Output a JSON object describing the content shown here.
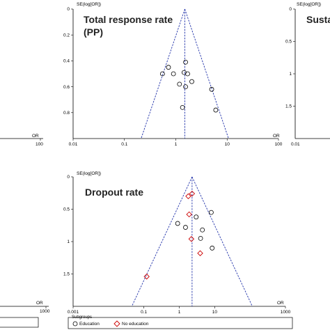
{
  "chart_data": [
    {
      "type": "scatter",
      "id": "left-top",
      "title": "",
      "xlabel": "OR",
      "ylabel": "",
      "x_scale": "log",
      "x_ticks": [
        "100"
      ],
      "y_ticks": [],
      "series": []
    },
    {
      "type": "scatter",
      "id": "center-top",
      "title_lines": [
        "Total response rate",
        "(PP)"
      ],
      "xlabel": "OR",
      "ylabel": "SE(log[OR])",
      "x_scale": "log",
      "xlim": [
        0.01,
        100
      ],
      "ylim": [
        0,
        1.0
      ],
      "y_reversed": true,
      "x_ticks": [
        "0.01",
        "0.1",
        "1",
        "10",
        "100"
      ],
      "x_tick_values": [
        0.01,
        0.1,
        1,
        10,
        100
      ],
      "y_ticks": [
        "0",
        "0.2",
        "0.4",
        "0.6",
        "0.8"
      ],
      "y_tick_values": [
        0,
        0.2,
        0.4,
        0.6,
        0.8
      ],
      "pooled_or": 1.5,
      "funnel_bottom_se": 1.0,
      "series": [
        {
          "marker": "circle",
          "points": [
            {
              "x": 1.55,
              "y": 0.41
            },
            {
              "x": 0.72,
              "y": 0.45
            },
            {
              "x": 0.55,
              "y": 0.5
            },
            {
              "x": 0.9,
              "y": 0.5
            },
            {
              "x": 1.45,
              "y": 0.49
            },
            {
              "x": 1.7,
              "y": 0.5
            },
            {
              "x": 1.18,
              "y": 0.58
            },
            {
              "x": 2.05,
              "y": 0.56
            },
            {
              "x": 1.55,
              "y": 0.6
            },
            {
              "x": 5.0,
              "y": 0.62
            },
            {
              "x": 1.35,
              "y": 0.76
            },
            {
              "x": 6.0,
              "y": 0.78
            }
          ]
        }
      ]
    },
    {
      "type": "scatter",
      "id": "right-top",
      "title_lines": [
        "Susta"
      ],
      "xlabel": "",
      "ylabel": "SE(log[OR])",
      "x_scale": "log",
      "ylim": [
        0,
        2.0
      ],
      "y_reversed": true,
      "x_ticks": [
        "0.01"
      ],
      "y_ticks": [
        "0",
        "0.5",
        "1",
        "1.5"
      ],
      "y_tick_values": [
        0,
        0.5,
        1,
        1.5
      ],
      "series": []
    },
    {
      "type": "scatter",
      "id": "left-bottom",
      "title": "",
      "xlabel": "OR",
      "ylabel": "",
      "x_scale": "log",
      "x_ticks": [
        "1000"
      ],
      "y_ticks": [],
      "series": []
    },
    {
      "type": "scatter",
      "id": "center-bottom",
      "title_lines": [
        "Dropout rate"
      ],
      "xlabel": "OR",
      "ylabel": "SE(log[OR])",
      "x_scale": "log",
      "xlim": [
        0.001,
        1000
      ],
      "ylim": [
        0,
        2.0
      ],
      "y_reversed": true,
      "x_ticks": [
        "0.001",
        "0.1",
        "1",
        "10",
        "1000"
      ],
      "x_tick_values": [
        0.001,
        0.1,
        1,
        10,
        1000
      ],
      "y_ticks": [
        "0",
        "0.5",
        "1",
        "1.5"
      ],
      "y_tick_values": [
        0,
        0.5,
        1,
        1.5
      ],
      "pooled_or": 2.3,
      "funnel_bottom_se": 2.0,
      "legend": {
        "title": "Subgroups",
        "placement": "bottom",
        "entries": [
          {
            "label": "Education",
            "marker": "circle"
          },
          {
            "label": "No education",
            "marker": "diamond"
          }
        ]
      },
      "series": [
        {
          "name": "Education",
          "marker": "circle",
          "color": "#000000",
          "points": [
            {
              "x": 3.0,
              "y": 0.62
            },
            {
              "x": 8.0,
              "y": 0.55
            },
            {
              "x": 0.9,
              "y": 0.72
            },
            {
              "x": 1.5,
              "y": 0.78
            },
            {
              "x": 4.5,
              "y": 0.82
            },
            {
              "x": 4.0,
              "y": 0.95
            },
            {
              "x": 8.5,
              "y": 1.1
            }
          ]
        },
        {
          "name": "No education",
          "marker": "diamond",
          "color": "#cc0000",
          "points": [
            {
              "x": 1.8,
              "y": 0.3
            },
            {
              "x": 2.3,
              "y": 0.26
            },
            {
              "x": 1.9,
              "y": 0.58
            },
            {
              "x": 2.2,
              "y": 0.96
            },
            {
              "x": 3.9,
              "y": 1.18
            },
            {
              "x": 0.12,
              "y": 1.54
            }
          ]
        }
      ]
    }
  ]
}
